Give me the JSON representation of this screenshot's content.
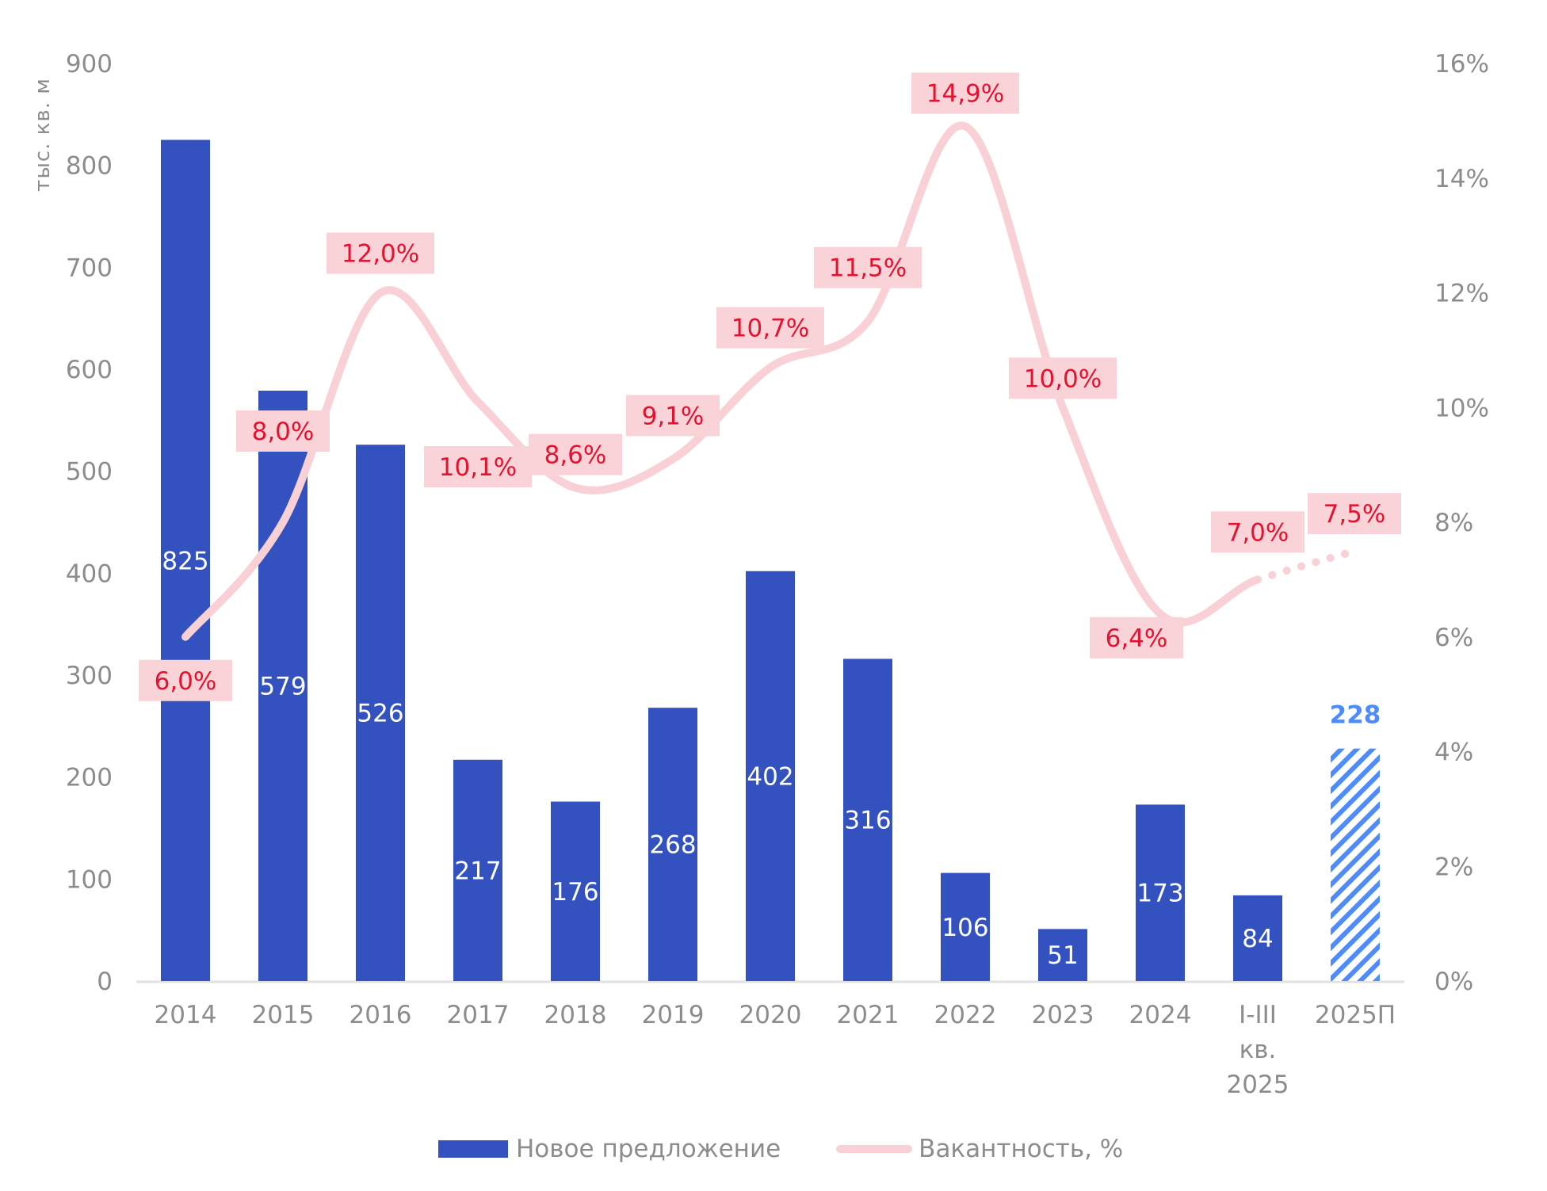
{
  "chart_data": {
    "type": "bar+line",
    "title": "",
    "ylabel": "тыс. кв. м",
    "y2label": "",
    "categories": [
      "2014",
      "2015",
      "2016",
      "2017",
      "2018",
      "2019",
      "2020",
      "2021",
      "2022",
      "2023",
      "2024",
      "I-III кв. 2025",
      "2025П"
    ],
    "category_lines": [
      [
        "2014"
      ],
      [
        "2015"
      ],
      [
        "2016"
      ],
      [
        "2017"
      ],
      [
        "2018"
      ],
      [
        "2019"
      ],
      [
        "2020"
      ],
      [
        "2021"
      ],
      [
        "2022"
      ],
      [
        "2023"
      ],
      [
        "2024"
      ],
      [
        "I-III",
        "кв.",
        "2025"
      ],
      [
        "2025П"
      ]
    ],
    "ylim": [
      0,
      900
    ],
    "yticks": [
      "0",
      "100",
      "200",
      "300",
      "400",
      "500",
      "600",
      "700",
      "800",
      "900"
    ],
    "y2lim": [
      0,
      16
    ],
    "y2ticks": [
      "0%",
      "2%",
      "4%",
      "6%",
      "8%",
      "10%",
      "12%",
      "14%",
      "16%"
    ],
    "series": [
      {
        "name": "Новое предложение",
        "type": "bar",
        "color": "#3352c0",
        "forecast_color": "#4f8cf7",
        "values": [
          825,
          579,
          526,
          217,
          176,
          268,
          402,
          316,
          106,
          51,
          173,
          84,
          228
        ],
        "labels": [
          "825",
          "579",
          "526",
          "217",
          "176",
          "268",
          "402",
          "316",
          "106",
          "51",
          "173",
          "84",
          "228"
        ],
        "forecast_index": 12
      },
      {
        "name": "Вакантность, %",
        "type": "line",
        "axis": "right",
        "color": "#f9d0d6",
        "label_bg": "#f9d3d8",
        "label_color": "#e3132f",
        "values": [
          6.0,
          8.0,
          12.0,
          10.1,
          8.6,
          9.1,
          10.7,
          11.5,
          14.9,
          10.0,
          6.4,
          7.0,
          7.5
        ],
        "labels": [
          "6,0%",
          "8,0%",
          "12,0%",
          "10,1%",
          "8,6%",
          "9,1%",
          "10,7%",
          "11,5%",
          "14,9%",
          "10,0%",
          "6,4%",
          "7,0%",
          "7,5%"
        ],
        "dotted_from_index": 11
      }
    ],
    "legend": {
      "position": "bottom",
      "items": [
        "Новое предложение",
        "Вакантность, %"
      ]
    },
    "grid": false
  }
}
